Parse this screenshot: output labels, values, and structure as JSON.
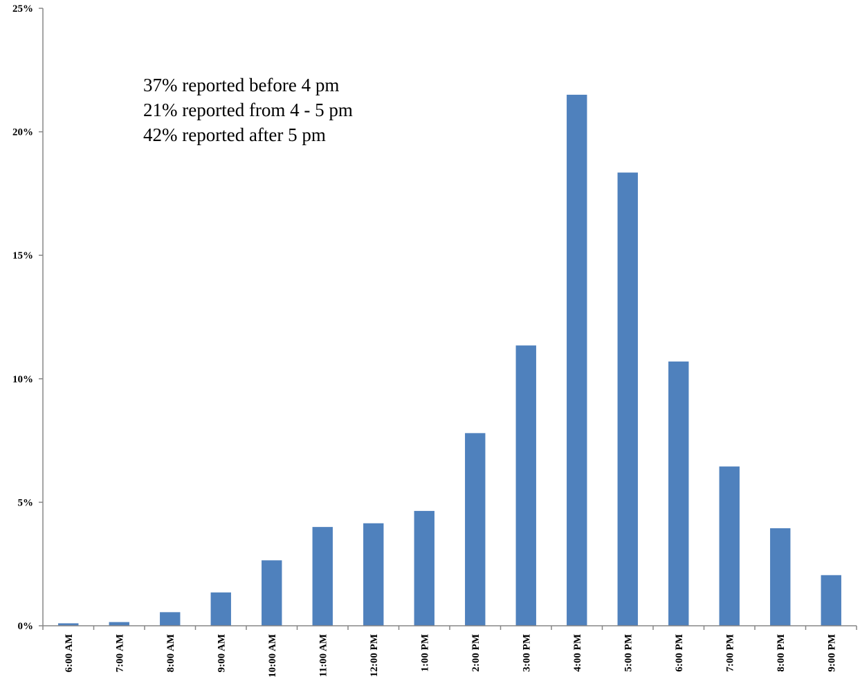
{
  "chart_data": {
    "type": "bar",
    "title": "",
    "xlabel": "",
    "ylabel": "",
    "categories": [
      "6:00 AM",
      "7:00 AM",
      "8:00 AM",
      "9:00 AM",
      "10:00 AM",
      "11:00 AM",
      "12:00 PM",
      "1:00 PM",
      "2:00 PM",
      "3:00 PM",
      "4:00 PM",
      "5:00 PM",
      "6:00 PM",
      "7:00 PM",
      "8:00 PM",
      "9:00 PM"
    ],
    "series": [
      {
        "values": [
          0.1,
          0.15,
          0.55,
          1.35,
          2.65,
          4.0,
          4.15,
          4.65,
          7.8,
          11.35,
          21.5,
          18.35,
          10.7,
          6.45,
          3.95,
          2.05
        ]
      }
    ],
    "ylim": [
      0,
      25
    ],
    "yticks": [
      0,
      5,
      10,
      15,
      20,
      25
    ],
    "ytick_labels": [
      "0%",
      "5%",
      "10%",
      "15%",
      "20%",
      "25%"
    ],
    "bar_color": "#4f81bd",
    "grid": false,
    "legend": "none",
    "annotations": [
      "37% reported before 4 pm",
      "21% reported from 4 - 5 pm",
      "42% reported after 5 pm"
    ]
  }
}
